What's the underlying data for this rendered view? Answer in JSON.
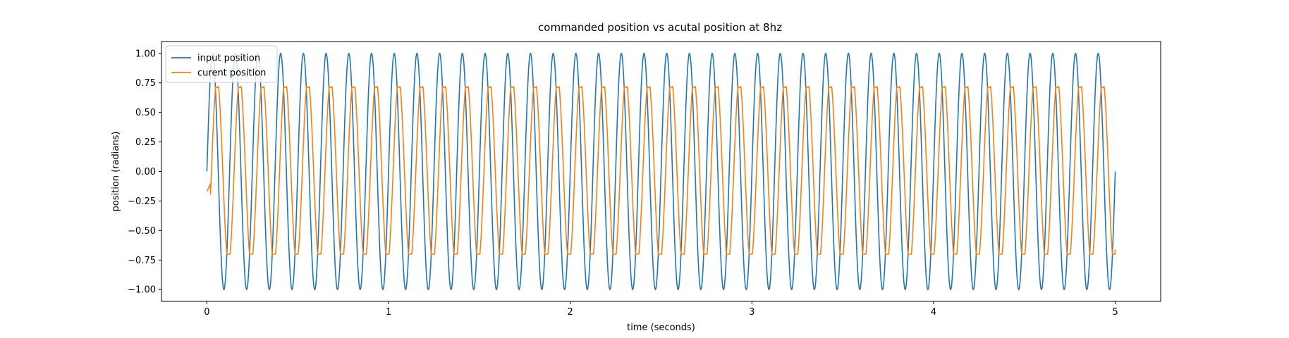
{
  "chart_data": {
    "type": "line",
    "title": "commanded position vs acutal position at 8hz",
    "xlabel": "time (seconds)",
    "ylabel": "position (radians)",
    "xlim": [
      -0.25,
      5.25
    ],
    "ylim": [
      -1.1,
      1.1
    ],
    "xticks": [
      0,
      1,
      2,
      3,
      4,
      5
    ],
    "xtick_labels": [
      "0",
      "1",
      "2",
      "3",
      "4",
      "5"
    ],
    "yticks": [
      -1.0,
      -0.75,
      -0.5,
      -0.25,
      0.0,
      0.25,
      0.5,
      0.75,
      1.0
    ],
    "ytick_labels": [
      "−1.00",
      "−0.75",
      "−0.50",
      "−0.25",
      "0.00",
      "0.25",
      "0.50",
      "0.75",
      "1.00"
    ],
    "grid": false,
    "legend_position": "top-left",
    "series": [
      {
        "name": "input position",
        "color": "#1f77b4",
        "function": "sine",
        "frequency_hz": 8,
        "amplitude": 1.0,
        "phase_offset_s": 0.0,
        "x_start": 0.0,
        "x_end": 5.0
      },
      {
        "name": "curent position",
        "color": "#ff7f0e",
        "function": "lagged-clipped-sine",
        "frequency_hz": 8,
        "amplitude": 0.72,
        "min_value": -0.7,
        "lag_s": 0.025,
        "start_value": -0.17,
        "x_start": 0.0,
        "x_end": 5.0,
        "end_value": -0.66
      }
    ]
  }
}
